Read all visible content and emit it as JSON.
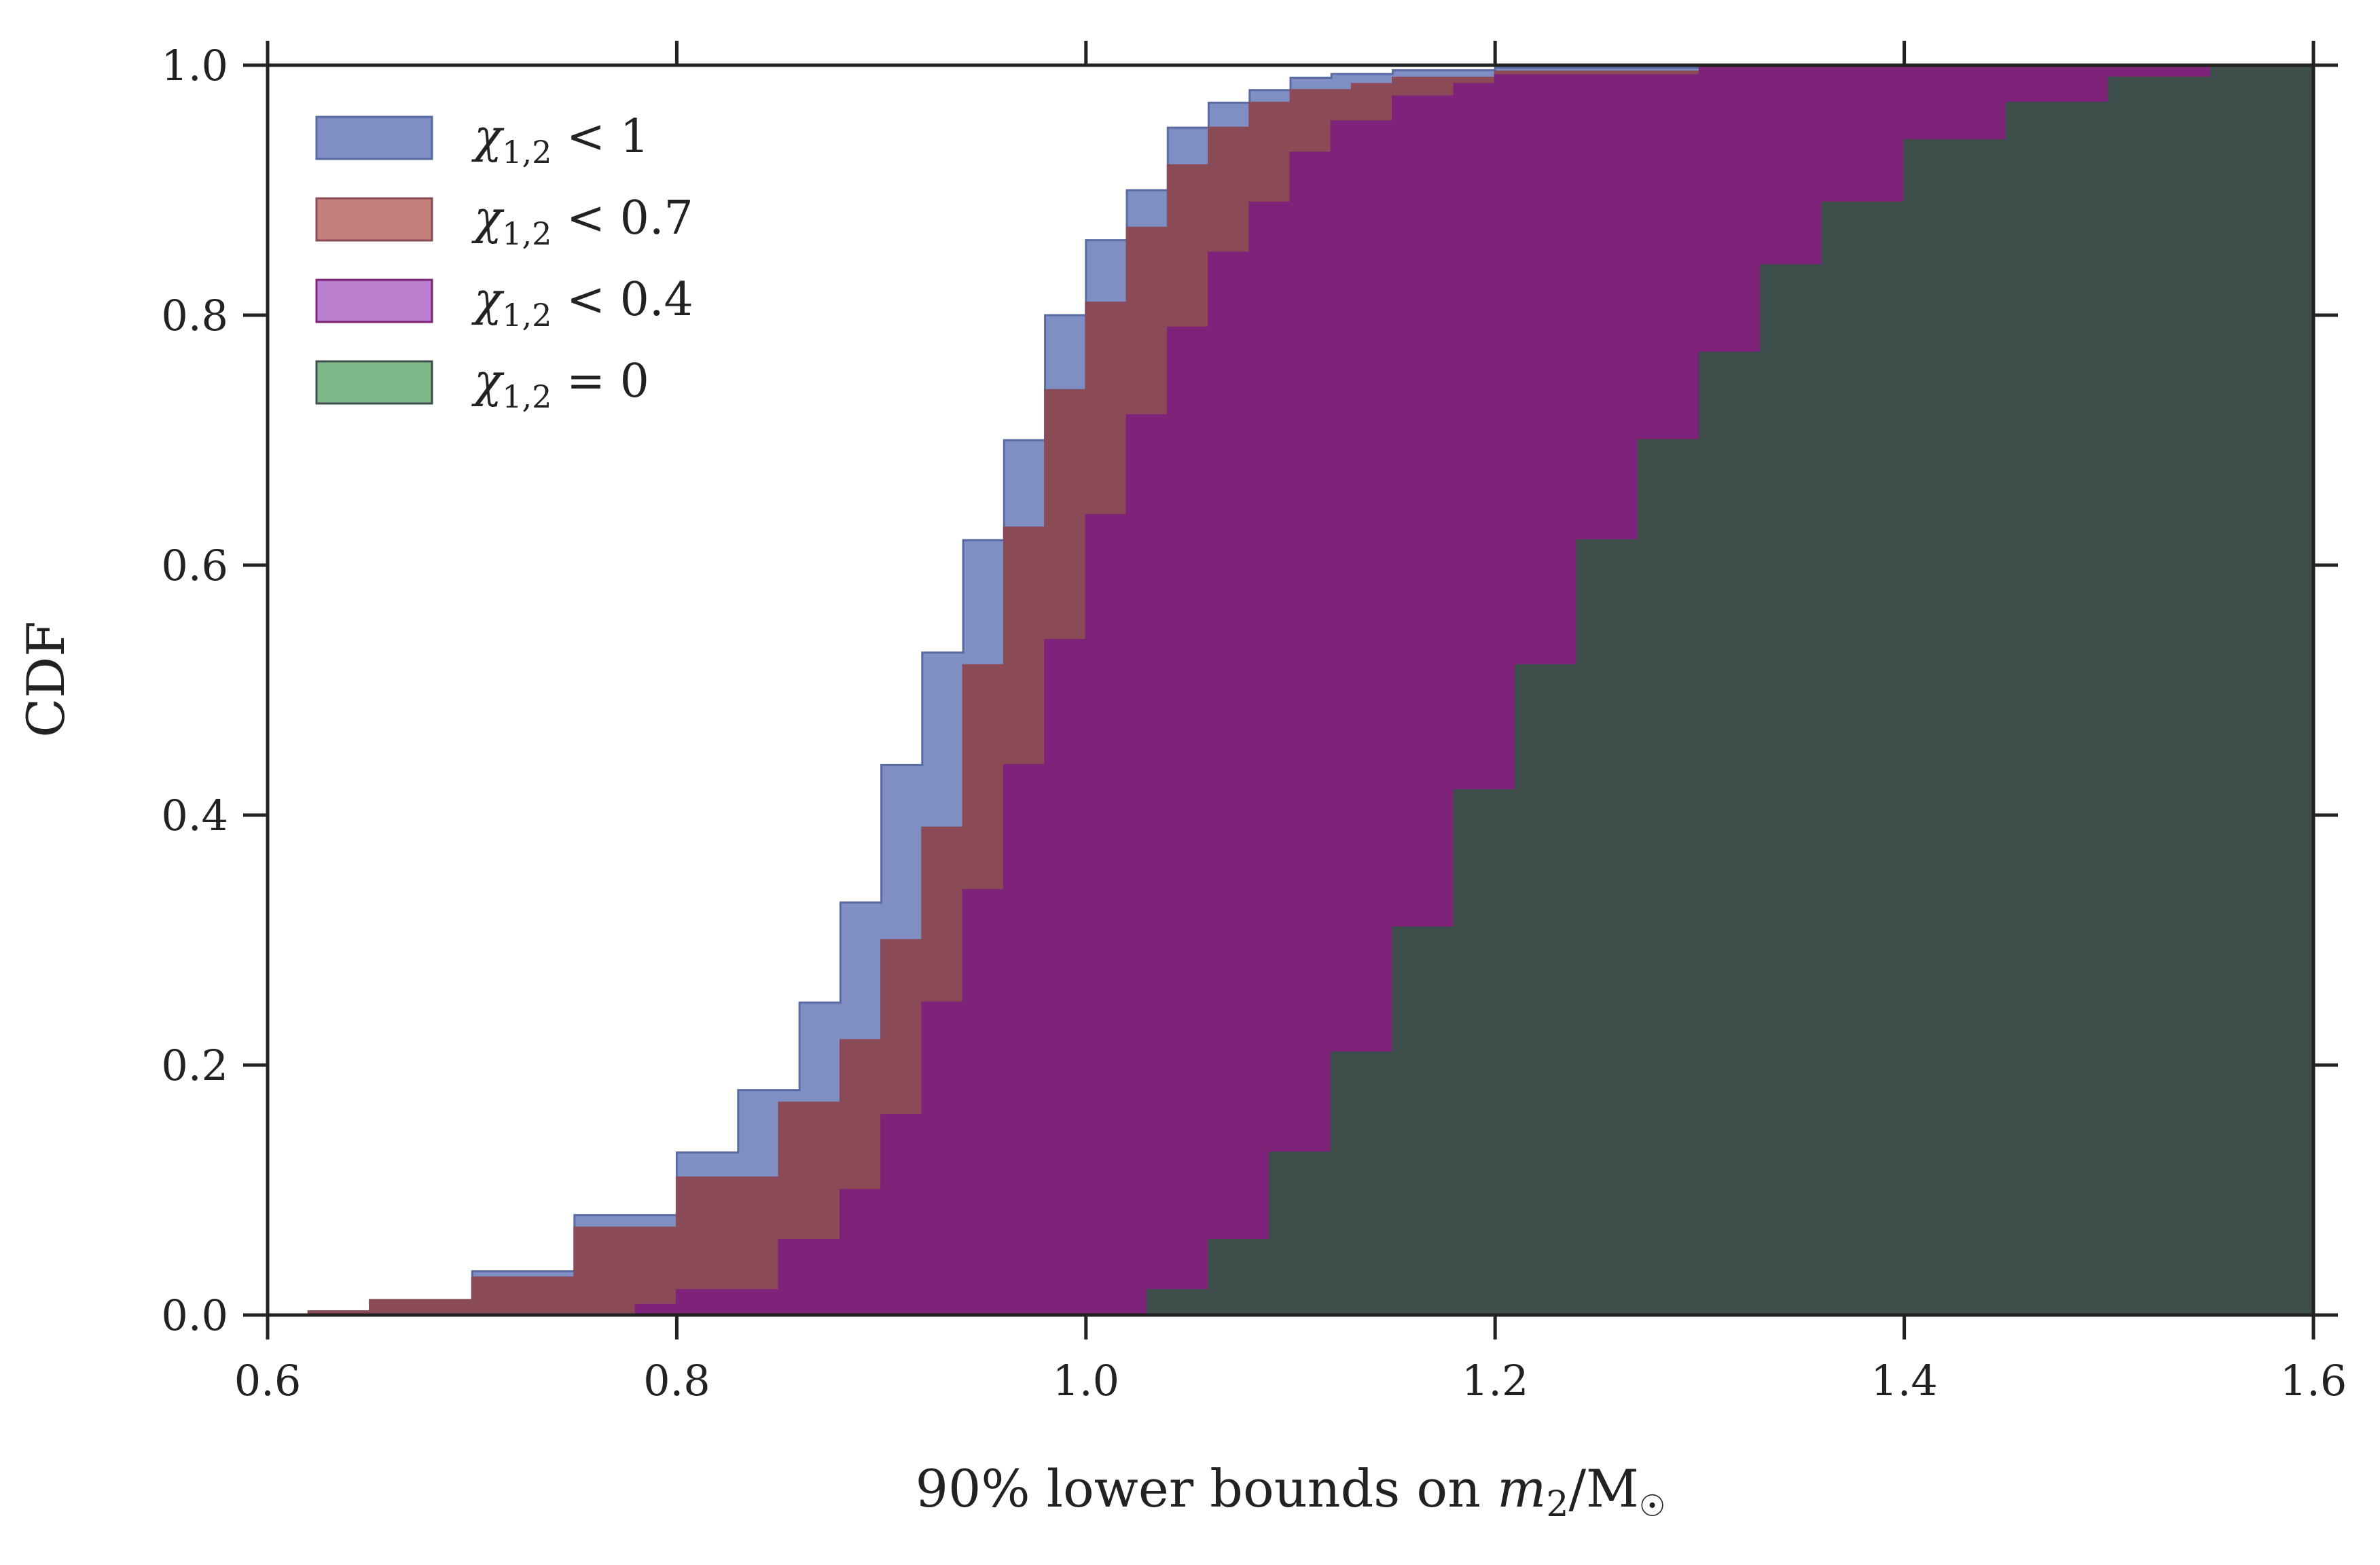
{
  "chart_data": {
    "type": "area",
    "xlabel": {
      "prefix": "90% lower bounds on ",
      "var": "m",
      "sub": "2",
      "suffix": "/M",
      "solar": "☉"
    },
    "ylabel": "CDF",
    "xlim": [
      0.6,
      1.6
    ],
    "ylim": [
      0.0,
      1.0
    ],
    "xticks": [
      "0.6",
      "0.8",
      "1.0",
      "1.2",
      "1.4",
      "1.6"
    ],
    "yticks": [
      "0.0",
      "0.2",
      "0.4",
      "0.6",
      "0.8",
      "1.0"
    ],
    "grid": false,
    "legend_position": "top-left",
    "series": [
      {
        "name": {
          "sym": "χ",
          "sub": "1,2",
          "rel": "<",
          "val": "1"
        },
        "color": "#7f8fc4",
        "dark": "#5a6aa3",
        "x": [
          0.6,
          0.62,
          0.65,
          0.7,
          0.75,
          0.8,
          0.83,
          0.86,
          0.88,
          0.9,
          0.92,
          0.94,
          0.96,
          0.98,
          1.0,
          1.02,
          1.04,
          1.06,
          1.08,
          1.1,
          1.12,
          1.15,
          1.2,
          1.3,
          1.4,
          1.51,
          1.6
        ],
        "y": [
          0.0,
          0.003,
          0.012,
          0.035,
          0.08,
          0.13,
          0.18,
          0.25,
          0.33,
          0.44,
          0.53,
          0.62,
          0.7,
          0.8,
          0.86,
          0.9,
          0.95,
          0.97,
          0.98,
          0.99,
          0.993,
          0.996,
          0.998,
          0.999,
          0.999,
          1.0,
          1.0
        ]
      },
      {
        "name": {
          "sym": "χ",
          "sub": "1,2",
          "rel": "<",
          "val": "0.7"
        },
        "color": "#c4817b",
        "dark": "#8a4b57",
        "x": [
          0.6,
          0.62,
          0.65,
          0.7,
          0.75,
          0.8,
          0.85,
          0.88,
          0.9,
          0.92,
          0.94,
          0.96,
          0.98,
          1.0,
          1.02,
          1.04,
          1.06,
          1.08,
          1.1,
          1.13,
          1.15,
          1.2,
          1.3,
          1.4,
          1.6
        ],
        "y": [
          0.0,
          0.003,
          0.012,
          0.03,
          0.07,
          0.11,
          0.17,
          0.22,
          0.3,
          0.39,
          0.52,
          0.63,
          0.74,
          0.81,
          0.87,
          0.92,
          0.95,
          0.97,
          0.98,
          0.985,
          0.99,
          0.995,
          0.999,
          1.0,
          1.0
        ]
      },
      {
        "name": {
          "sym": "χ",
          "sub": "1,2",
          "rel": "<",
          "val": "0.4"
        },
        "color": "#bb7fcf",
        "dark": "#7e227a",
        "x": [
          0.6,
          0.74,
          0.78,
          0.8,
          0.85,
          0.88,
          0.9,
          0.92,
          0.94,
          0.96,
          0.98,
          1.0,
          1.02,
          1.04,
          1.06,
          1.08,
          1.1,
          1.12,
          1.15,
          1.18,
          1.2,
          1.3,
          1.4,
          1.6
        ],
        "y": [
          0.0,
          0.0,
          0.008,
          0.02,
          0.06,
          0.1,
          0.16,
          0.25,
          0.34,
          0.44,
          0.54,
          0.64,
          0.72,
          0.79,
          0.85,
          0.89,
          0.93,
          0.955,
          0.975,
          0.985,
          0.992,
          0.998,
          1.0,
          1.0
        ]
      },
      {
        "name": {
          "sym": "χ",
          "sub": "1,2",
          "rel": "=",
          "val": "0"
        },
        "color": "#80b989",
        "dark": "#3e4e4b",
        "x": [
          0.6,
          1.015,
          1.03,
          1.06,
          1.09,
          1.12,
          1.15,
          1.18,
          1.21,
          1.24,
          1.27,
          1.3,
          1.33,
          1.36,
          1.4,
          1.45,
          1.5,
          1.55,
          1.6
        ],
        "y": [
          0.0,
          0.0,
          0.02,
          0.06,
          0.13,
          0.21,
          0.31,
          0.42,
          0.52,
          0.62,
          0.7,
          0.77,
          0.84,
          0.89,
          0.94,
          0.97,
          0.99,
          0.998,
          1.0
        ]
      }
    ]
  }
}
